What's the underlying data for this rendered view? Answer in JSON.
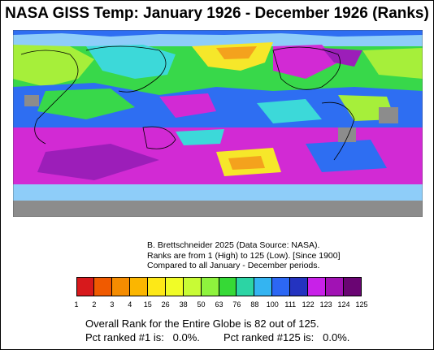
{
  "title": "NASA GISS Temp: January 1926 - December 1926 (Ranks)",
  "credit": {
    "line1": "B. Brettschneider 2025 (Data Source: NASA).",
    "line2": "Ranks are from 1 (High) to 125 (Low). [Since 1900]",
    "line3": "Compared to all January - December periods."
  },
  "legend": {
    "labels": [
      "1",
      "2",
      "3",
      "4",
      "15",
      "26",
      "38",
      "50",
      "63",
      "76",
      "88",
      "100",
      "111",
      "122",
      "123",
      "124",
      "125"
    ],
    "colors": [
      "#d7191c",
      "#f05a00",
      "#f58c00",
      "#fbb600",
      "#fde817",
      "#f0fc27",
      "#c8fb35",
      "#8ef33d",
      "#36d936",
      "#2cd4a4",
      "#34b4f1",
      "#2c67f4",
      "#2433c0",
      "#c821e8",
      "#a112b4",
      "#6a0573",
      "#ffffff"
    ]
  },
  "summary": {
    "overall": "Overall Rank for the Entire Globe is 82 out of 125.",
    "pct1": "Pct ranked #1 is:   0.0%.",
    "pct125": "Pct ranked #125 is:   0.0%."
  },
  "colors": {
    "magenta": "#d22ad4",
    "purple": "#9c1eb9",
    "blue": "#2e6ef2",
    "skyblue": "#8ecdf9",
    "cyan": "#3cd9d9",
    "green": "#38d84a",
    "lime": "#a6ef3a",
    "yellow": "#f6e72a",
    "orange": "#f4a21d",
    "gray": "#8c8c8c"
  }
}
